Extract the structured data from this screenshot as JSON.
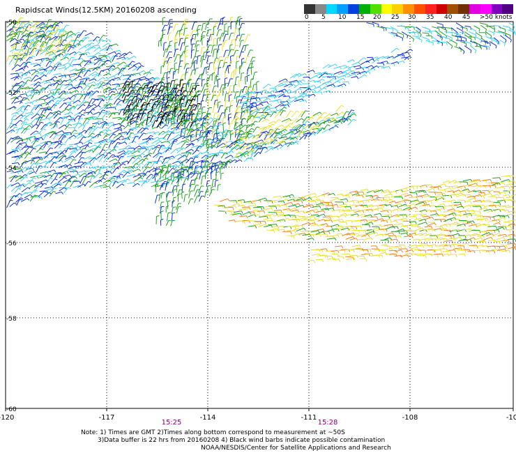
{
  "title": "Rapidscat Winds(12.5KM) 20160208 ascending",
  "legend": {
    "labels": [
      "0",
      "5",
      "10",
      "15",
      "20",
      "25",
      "30",
      "35",
      "40",
      "45",
      ">50 knots"
    ],
    "colors": [
      "#333333",
      "#888888",
      "#00d8ff",
      "#00a0ff",
      "#0040e0",
      "#00b000",
      "#50e000",
      "#ffff00",
      "#ffd000",
      "#ff9000",
      "#ff5000",
      "#ff2020",
      "#d00000",
      "#a05000",
      "#703000",
      "#e000e0",
      "#ff00ff",
      "#8000c0",
      "#500080"
    ]
  },
  "map": {
    "lon_ticks": [
      "-120",
      "-117",
      "-114",
      "-111",
      "-108",
      "-10"
    ],
    "lat_ticks": [
      "-50",
      "-52",
      "-54",
      "-56",
      "-58",
      "-60"
    ],
    "times": [
      "15:25",
      "15:28"
    ],
    "time_color": "#800080"
  },
  "note": {
    "line1": "Note: 1) Times are GMT 2)Times along bottom correspond to measurement at ~50S",
    "line2": "3)Data buffer is 22 hrs from 20160208 4) Black wind barbs indicate possible contamination",
    "line3": "NOAA/NESDIS/Center for Satellite Applications and Research"
  },
  "swath_colors": {
    "cyan": "#40d0f0",
    "blue": "#1030d0",
    "green": "#20a020",
    "yellow": "#e8e030",
    "orange": "#f08020",
    "black": "#000000"
  }
}
